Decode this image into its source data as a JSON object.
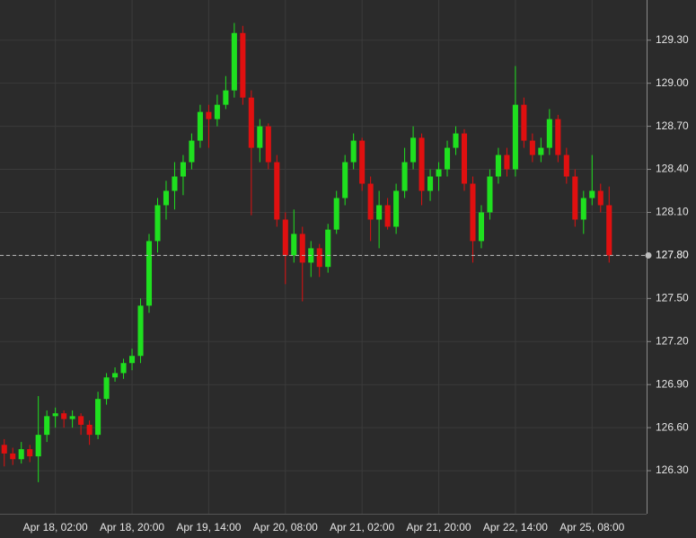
{
  "chart_data": {
    "type": "candlestick",
    "categories": [
      null,
      null,
      null,
      null,
      null,
      null,
      "Apr 18, 02:00",
      null,
      null,
      null,
      null,
      null,
      null,
      null,
      null,
      "Apr 18, 20:00",
      null,
      null,
      null,
      null,
      null,
      null,
      null,
      null,
      "Apr 19, 14:00",
      null,
      null,
      null,
      null,
      null,
      null,
      null,
      null,
      "Apr 20, 08:00",
      null,
      null,
      null,
      null,
      null,
      null,
      null,
      null,
      "Apr 21, 02:00",
      null,
      null,
      null,
      null,
      null,
      null,
      null,
      null,
      "Apr 21, 20:00",
      null,
      null,
      null,
      null,
      null,
      null,
      null,
      null,
      "Apr 22, 14:00",
      null,
      null,
      null,
      null,
      null,
      null,
      null,
      null,
      "Apr 25, 08:00",
      null,
      null
    ],
    "open": [
      126.48,
      126.42,
      126.38,
      126.45,
      126.4,
      126.55,
      126.68,
      126.7,
      126.66,
      126.68,
      126.62,
      126.55,
      126.8,
      126.95,
      126.98,
      127.05,
      127.1,
      127.45,
      127.9,
      128.15,
      128.25,
      128.35,
      128.45,
      128.6,
      128.8,
      128.75,
      128.85,
      128.95,
      129.35,
      128.9,
      128.55,
      128.7,
      128.45,
      128.05,
      127.8,
      127.95,
      127.75,
      127.85,
      127.72,
      127.98,
      128.2,
      128.45,
      128.6,
      128.3,
      128.05,
      128.15,
      128.0,
      128.25,
      128.45,
      128.62,
      128.25,
      128.35,
      128.4,
      128.55,
      128.65,
      128.3,
      127.9,
      128.1,
      128.35,
      128.5,
      128.4,
      128.85,
      128.6,
      128.5,
      128.55,
      128.75,
      128.5,
      128.35,
      128.05,
      128.2,
      128.25,
      128.15
    ],
    "high": [
      126.52,
      126.46,
      126.5,
      126.48,
      126.82,
      126.72,
      126.74,
      126.72,
      126.72,
      126.7,
      126.65,
      126.85,
      126.98,
      127.02,
      127.08,
      127.15,
      127.5,
      127.95,
      128.2,
      128.32,
      128.45,
      128.5,
      128.65,
      128.85,
      128.85,
      128.92,
      129.05,
      129.42,
      129.4,
      128.95,
      128.75,
      128.72,
      128.5,
      128.1,
      128.12,
      128.0,
      127.9,
      127.88,
      128.02,
      128.25,
      128.5,
      128.65,
      128.62,
      128.35,
      128.25,
      128.2,
      128.3,
      128.55,
      128.7,
      128.65,
      128.4,
      128.45,
      128.6,
      128.7,
      128.68,
      128.35,
      128.15,
      128.4,
      128.55,
      128.55,
      129.12,
      128.9,
      128.65,
      128.62,
      128.82,
      128.78,
      128.55,
      128.4,
      128.25,
      128.5,
      128.3,
      128.28
    ],
    "low": [
      126.33,
      126.34,
      126.35,
      126.36,
      126.22,
      126.5,
      126.6,
      126.6,
      126.6,
      126.55,
      126.48,
      126.52,
      126.76,
      126.92,
      126.94,
      127.0,
      127.05,
      127.4,
      127.82,
      128.05,
      128.12,
      128.22,
      128.4,
      128.55,
      128.55,
      128.7,
      128.82,
      128.9,
      128.85,
      128.08,
      128.45,
      128.4,
      128.0,
      127.6,
      127.75,
      127.48,
      127.65,
      127.65,
      127.68,
      127.95,
      128.15,
      128.4,
      128.25,
      127.9,
      127.85,
      127.98,
      127.95,
      128.2,
      128.4,
      128.15,
      128.18,
      128.25,
      128.35,
      128.5,
      128.25,
      127.75,
      127.85,
      128.05,
      128.3,
      128.35,
      128.35,
      128.55,
      128.45,
      128.45,
      128.5,
      128.45,
      128.3,
      128.0,
      127.95,
      128.15,
      128.1,
      127.75
    ],
    "close": [
      126.42,
      126.38,
      126.45,
      126.4,
      126.55,
      126.68,
      126.7,
      126.66,
      126.68,
      126.62,
      126.55,
      126.8,
      126.95,
      126.98,
      127.05,
      127.1,
      127.45,
      127.9,
      128.15,
      128.25,
      128.35,
      128.45,
      128.6,
      128.8,
      128.75,
      128.85,
      128.95,
      129.35,
      128.9,
      128.55,
      128.7,
      128.45,
      128.05,
      127.8,
      127.95,
      127.75,
      127.85,
      127.72,
      127.98,
      128.2,
      128.45,
      128.6,
      128.3,
      128.05,
      128.15,
      128.0,
      128.25,
      128.45,
      128.62,
      128.25,
      128.35,
      128.4,
      128.55,
      128.65,
      128.3,
      127.9,
      128.1,
      128.35,
      128.5,
      128.4,
      128.85,
      128.6,
      128.5,
      128.55,
      128.75,
      128.5,
      128.35,
      128.05,
      128.2,
      128.25,
      128.15,
      127.8
    ],
    "up_color": "#1fe01f",
    "down_color": "#e01010",
    "ylim": [
      126.0,
      129.58
    ],
    "yticks": [
      {
        "value": 126.3,
        "label": "126.30"
      },
      {
        "value": 126.6,
        "label": "126.60"
      },
      {
        "value": 126.9,
        "label": "126.90"
      },
      {
        "value": 127.2,
        "label": "127.20"
      },
      {
        "value": 127.5,
        "label": "127.50"
      },
      {
        "value": 127.8,
        "label": "127.80"
      },
      {
        "value": 128.1,
        "label": "128.10"
      },
      {
        "value": 128.4,
        "label": "128.40"
      },
      {
        "value": 128.7,
        "label": "128.70"
      },
      {
        "value": 129.0,
        "label": "129.00"
      },
      {
        "value": 129.3,
        "label": "129.30"
      }
    ],
    "last_price": {
      "value": 127.8,
      "label": "127.80"
    },
    "grid": true
  }
}
